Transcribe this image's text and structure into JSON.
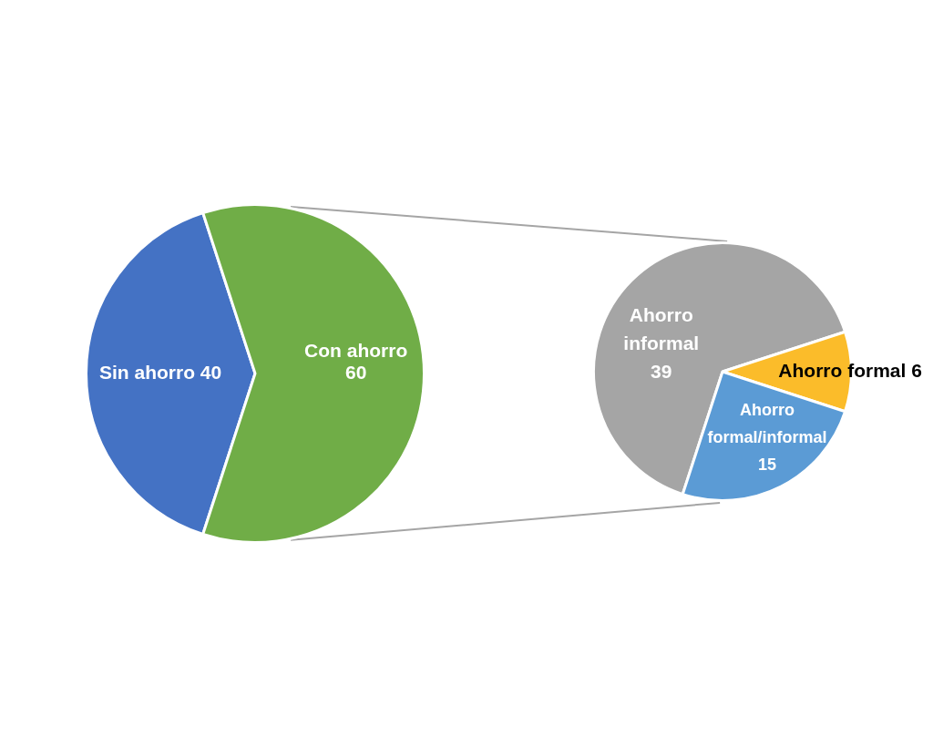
{
  "chart_data": [
    {
      "type": "pie",
      "categories": [
        "Sin ahorro",
        "Con ahorro"
      ],
      "values": [
        40,
        60
      ],
      "colors": [
        "#4472c4",
        "#70ad47"
      ],
      "data_labels": true
    },
    {
      "type": "pie",
      "categories": [
        "Ahorro informal",
        "Ahorro formal",
        "Ahorro formal/informal"
      ],
      "values": [
        39,
        6,
        15
      ],
      "colors": [
        "#a5a5a5",
        "#fbbc2a",
        "#5b9bd5"
      ],
      "data_labels": true
    }
  ]
}
